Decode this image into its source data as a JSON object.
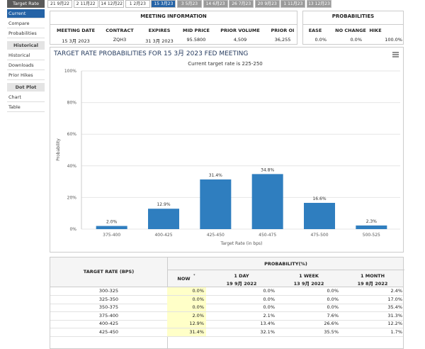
{
  "tabs": {
    "label": "Target Rate",
    "items": [
      "21 9月22",
      "2 11月22",
      "14 12月22",
      "1 2月23",
      "15 3月23",
      "3 5月23",
      "14 6月23",
      "26 7月23",
      "20 9月23",
      "1 11月23",
      "13 12月23"
    ],
    "active": 4
  },
  "sidebar": {
    "active": 0,
    "sections": [
      {
        "items": [
          "Current",
          "Compare",
          "Probabilities"
        ]
      },
      {
        "title": "Historical",
        "items": [
          "Historical",
          "Downloads",
          "Prior Hikes"
        ]
      },
      {
        "title": "Dot Plot",
        "items": [
          "Chart",
          "Table"
        ]
      }
    ]
  },
  "meeting_info": {
    "title": "MEETING INFORMATION",
    "headers": [
      "MEETING DATE",
      "CONTRACT",
      "EXPIRES",
      "MID PRICE",
      "PRIOR VOLUME",
      "PRIOR OI"
    ],
    "row": [
      "15 3月 2023",
      "ZQH3",
      "31 3月 2023",
      "95.5800",
      "4,509",
      "36,255"
    ]
  },
  "probabilities": {
    "title": "PROBABILITIES",
    "headers": [
      "EASE",
      "NO CHANGE",
      "HIKE"
    ],
    "row": [
      "0.0%",
      "0.0%",
      "100.0%"
    ]
  },
  "chart_data": {
    "type": "bar",
    "title": "TARGET RATE PROBABILITIES FOR 15 3月 2023 FED MEETING",
    "subtitle": "Current target rate is 225-250",
    "x_label": "Target Rate (in bps)",
    "y_label": "Probability",
    "categories": [
      "375-400",
      "400-425",
      "425-450",
      "450-475",
      "475-500",
      "500-525"
    ],
    "values": [
      2.0,
      12.9,
      31.4,
      34.8,
      16.6,
      2.3
    ],
    "value_labels": [
      "2.0%",
      "12.9%",
      "31.4%",
      "34.8%",
      "16.6%",
      "2.3%"
    ],
    "color": "#2f7ebf",
    "ylim": [
      0,
      100
    ],
    "yticks": [
      {
        "value": 0,
        "label": "0%"
      },
      {
        "value": 20,
        "label": "20%"
      },
      {
        "value": 40,
        "label": "40%"
      },
      {
        "value": 60,
        "label": "60%"
      },
      {
        "value": 80,
        "label": "80%"
      },
      {
        "value": 100,
        "label": "100%"
      }
    ],
    "grid": true
  },
  "table": {
    "col_header": "TARGET RATE (BPS)",
    "group_header": "PROBABILITY(%)",
    "columns": [
      {
        "label": "NOW",
        "note": "*"
      },
      {
        "label": "1 DAY",
        "date": "19 9月 2022"
      },
      {
        "label": "1 WEEK",
        "date": "13 9月 2022"
      },
      {
        "label": "1 MONTH",
        "date": "19 8月 2022"
      }
    ],
    "rows": [
      [
        "300-325",
        "0.0%",
        "0.0%",
        "0.0%",
        "2.4%"
      ],
      [
        "325-350",
        "0.0%",
        "0.0%",
        "0.0%",
        "17.0%"
      ],
      [
        "350-375",
        "0.0%",
        "0.0%",
        "0.0%",
        "35.4%"
      ],
      [
        "375-400",
        "2.0%",
        "2.1%",
        "7.6%",
        "31.3%"
      ],
      [
        "400-425",
        "12.9%",
        "13.4%",
        "26.6%",
        "12.2%"
      ],
      [
        "425-450",
        "31.4%",
        "32.1%",
        "35.5%",
        "1.7%"
      ]
    ]
  }
}
